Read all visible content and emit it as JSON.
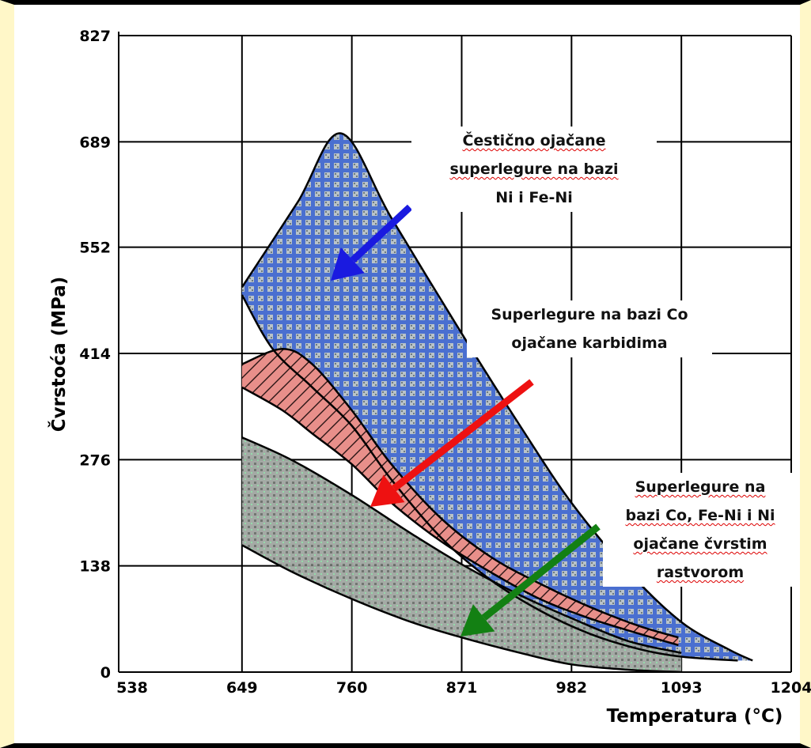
{
  "chart_data": {
    "type": "area",
    "title": "",
    "xlabel": "Temperatura (°C)",
    "ylabel": "Čvrstoća (MPa)",
    "x_ticks": [
      538,
      649,
      760,
      871,
      982,
      1093,
      1204
    ],
    "y_ticks": [
      0,
      138,
      276,
      414,
      552,
      689,
      827
    ],
    "xlim": [
      538,
      1204
    ],
    "ylim": [
      0,
      827
    ],
    "grid": true,
    "series": [
      {
        "name": "Čestično ojačane superlegure na bazi Ni i Fe-Ni",
        "color": "#4a6fd0",
        "upper": [
          [
            649,
            500
          ],
          [
            705,
            610
          ],
          [
            749,
            700
          ],
          [
            800,
            590
          ],
          [
            871,
            440
          ],
          [
            930,
            320
          ],
          [
            982,
            220
          ],
          [
            1040,
            130
          ],
          [
            1093,
            65
          ],
          [
            1140,
            30
          ],
          [
            1165,
            15
          ]
        ],
        "lower": [
          [
            649,
            490
          ],
          [
            680,
            420
          ],
          [
            720,
            370
          ],
          [
            760,
            320
          ],
          [
            800,
            250
          ],
          [
            850,
            175
          ],
          [
            900,
            120
          ],
          [
            950,
            80
          ],
          [
            1000,
            50
          ],
          [
            1050,
            30
          ],
          [
            1093,
            20
          ],
          [
            1150,
            15
          ]
        ]
      },
      {
        "name": "Superlegure na bazi Co ojačane karbidima",
        "color": "#e88080",
        "upper": [
          [
            649,
            400
          ],
          [
            690,
            420
          ],
          [
            720,
            400
          ],
          [
            760,
            340
          ],
          [
            800,
            270
          ],
          [
            850,
            200
          ],
          [
            900,
            150
          ],
          [
            950,
            115
          ],
          [
            1000,
            85
          ],
          [
            1050,
            60
          ],
          [
            1090,
            45
          ]
        ],
        "lower": [
          [
            649,
            370
          ],
          [
            690,
            340
          ],
          [
            720,
            310
          ],
          [
            760,
            270
          ],
          [
            800,
            220
          ],
          [
            850,
            170
          ],
          [
            900,
            130
          ],
          [
            950,
            95
          ],
          [
            1000,
            70
          ],
          [
            1050,
            50
          ],
          [
            1090,
            35
          ]
        ]
      },
      {
        "name": "Superlegure na bazi Co, Fe-Ni i Ni ojačane čvrstim rastvorom",
        "color": "#8fa898",
        "upper": [
          [
            649,
            305
          ],
          [
            700,
            275
          ],
          [
            760,
            230
          ],
          [
            820,
            180
          ],
          [
            871,
            140
          ],
          [
            930,
            100
          ],
          [
            982,
            70
          ],
          [
            1040,
            40
          ],
          [
            1093,
            25
          ]
        ],
        "lower": [
          [
            649,
            165
          ],
          [
            700,
            130
          ],
          [
            760,
            95
          ],
          [
            820,
            65
          ],
          [
            871,
            45
          ],
          [
            930,
            25
          ],
          [
            982,
            10
          ],
          [
            1040,
            3
          ],
          [
            1093,
            0
          ]
        ]
      }
    ]
  },
  "annotations": [
    {
      "lines": [
        "Čestično ojačane",
        "superlegure na bazi",
        "Ni i Fe-Ni"
      ],
      "squiggle": [
        0,
        1
      ]
    },
    {
      "lines": [
        "Superlegure na bazi Co",
        "ojačane karbidima"
      ],
      "squiggle": []
    },
    {
      "lines": [
        "Superlegure na",
        "bazi Co, Fe-Ni i Ni",
        "ojačane čvrstim",
        "rastvorom"
      ],
      "squiggle": [
        0,
        1,
        2,
        3
      ]
    }
  ],
  "arrow_colors": [
    "#1a1ae0",
    "#ee1111",
    "#138013"
  ],
  "grid_color": "#000000",
  "frame_color": "#fff7c8"
}
